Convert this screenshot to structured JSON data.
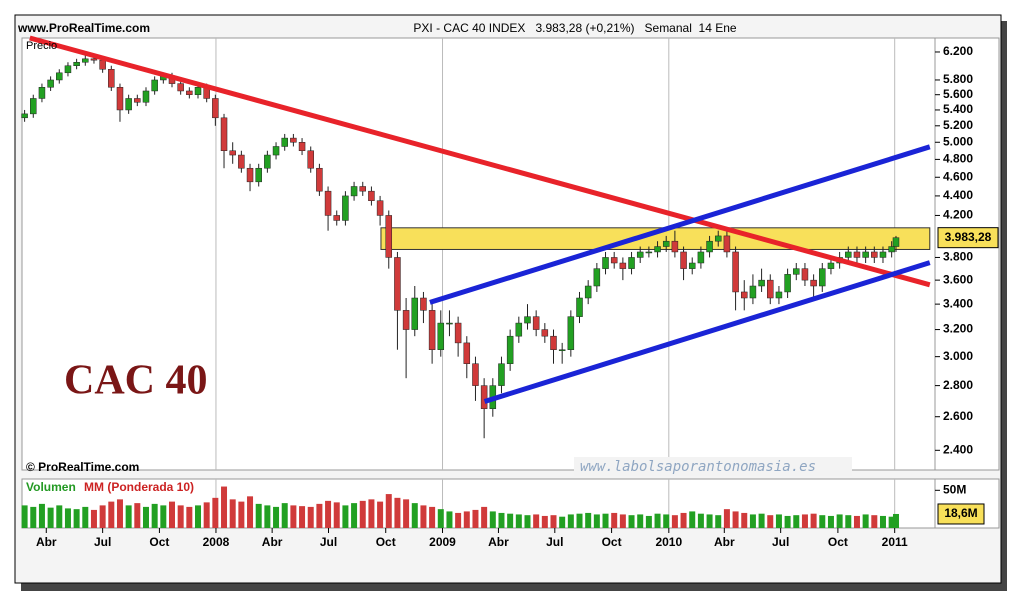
{
  "chart_data": {
    "type": "candlestick",
    "source": "www.ProRealTime.com",
    "subtitle": "PXI - CAC 40 INDEX   3.983,28 (+0,21%)   Semanal  14 Ene",
    "ylabel": "Precio",
    "watermark": "CAC 40",
    "copyright": "© ProRealTime.com",
    "website": "www.labolsaporantonomasia.es",
    "log": true,
    "xgrid": true,
    "colors": {
      "up": "#22a022",
      "down": "#d03a3a"
    },
    "x": [
      8,
      10,
      12,
      14,
      16,
      18,
      20,
      22,
      24,
      26,
      28,
      30,
      32,
      34,
      36,
      38,
      40,
      42,
      44,
      46,
      48,
      50,
      52,
      54,
      56,
      58,
      60,
      62,
      64,
      66,
      68,
      70,
      72,
      74,
      76,
      78,
      80,
      82,
      84,
      86,
      88,
      90,
      92,
      94,
      96,
      98,
      100,
      102,
      104,
      106,
      108,
      110,
      112,
      114,
      116,
      118,
      120,
      122,
      124,
      126,
      128,
      130,
      132,
      134,
      136,
      138,
      140,
      142,
      144,
      146,
      148,
      150,
      152,
      154,
      156,
      158,
      160,
      162,
      164,
      166,
      168,
      170,
      172,
      174,
      176,
      178,
      180,
      182,
      184,
      186,
      188,
      190,
      192,
      194,
      196,
      198,
      200,
      202,
      204,
      206,
      208,
      209
    ],
    "open": [
      5300,
      5350,
      5550,
      5700,
      5800,
      5900,
      6000,
      6050,
      6100,
      6080,
      5950,
      5700,
      5400,
      5550,
      5500,
      5650,
      5800,
      5850,
      5750,
      5650,
      5600,
      5700,
      5550,
      5300,
      4900,
      4850,
      4700,
      4550,
      4700,
      4850,
      4950,
      5050,
      5000,
      4900,
      4700,
      4450,
      4200,
      4150,
      4400,
      4500,
      4450,
      4350,
      4200,
      3800,
      3350,
      3200,
      3450,
      3350,
      3050,
      3250,
      3250,
      3100,
      2950,
      2800,
      2650,
      2800,
      2950,
      3150,
      3250,
      3300,
      3200,
      3150,
      3050,
      3050,
      3300,
      3450,
      3550,
      3700,
      3800,
      3750,
      3700,
      3800,
      3850,
      3850,
      3900,
      3950,
      3850,
      3700,
      3750,
      3850,
      3950,
      4000,
      3850,
      3500,
      3450,
      3550,
      3600,
      3450,
      3500,
      3650,
      3700,
      3600,
      3550,
      3700,
      3750,
      3800,
      3850,
      3800,
      3850,
      3800,
      3850,
      3900
    ],
    "high": [
      5400,
      5600,
      5750,
      5850,
      5950,
      6050,
      6100,
      6150,
      6150,
      6130,
      6000,
      5750,
      5600,
      5600,
      5700,
      5850,
      5900,
      5900,
      5800,
      5700,
      5750,
      5750,
      5600,
      5350,
      5000,
      4900,
      4750,
      4750,
      4900,
      5000,
      5100,
      5100,
      5050,
      4950,
      4750,
      4500,
      4250,
      4450,
      4550,
      4550,
      4500,
      4400,
      4250,
      3850,
      3450,
      3550,
      3500,
      3400,
      3350,
      3350,
      3300,
      3150,
      3000,
      2850,
      2850,
      3000,
      3200,
      3300,
      3400,
      3350,
      3250,
      3200,
      3100,
      3350,
      3500,
      3600,
      3750,
      3850,
      3850,
      3800,
      3850,
      3900,
      3900,
      3950,
      4000,
      4050,
      3900,
      3800,
      3900,
      4000,
      4050,
      4050,
      3900,
      3600,
      3650,
      3700,
      3650,
      3550,
      3700,
      3750,
      3750,
      3650,
      3750,
      3800,
      3850,
      3900,
      3900,
      3900,
      3900,
      3900,
      3950,
      4000
    ],
    "low": [
      5250,
      5300,
      5500,
      5650,
      5750,
      5850,
      5950,
      6000,
      6030,
      5900,
      5650,
      5250,
      5350,
      5450,
      5450,
      5600,
      5750,
      5700,
      5600,
      5550,
      5550,
      5500,
      5200,
      4700,
      4750,
      4650,
      4450,
      4500,
      4650,
      4800,
      4900,
      4950,
      4850,
      4650,
      4400,
      4050,
      4100,
      4100,
      4350,
      4400,
      4300,
      4100,
      3700,
      3050,
      2850,
      3150,
      3250,
      2950,
      3000,
      3150,
      3000,
      2850,
      2700,
      2470,
      2600,
      2750,
      2900,
      3100,
      3200,
      3150,
      3100,
      2950,
      2950,
      3000,
      3250,
      3400,
      3500,
      3650,
      3700,
      3600,
      3650,
      3750,
      3800,
      3800,
      3850,
      3800,
      3600,
      3650,
      3700,
      3800,
      3900,
      3800,
      3350,
      3350,
      3400,
      3500,
      3400,
      3400,
      3450,
      3600,
      3550,
      3450,
      3500,
      3650,
      3700,
      3750,
      3750,
      3750,
      3750,
      3750,
      3800,
      3850
    ],
    "close": [
      5350,
      5550,
      5700,
      5800,
      5900,
      6000,
      6050,
      6100,
      6080,
      5950,
      5700,
      5400,
      5550,
      5500,
      5650,
      5800,
      5850,
      5750,
      5650,
      5600,
      5700,
      5550,
      5300,
      4900,
      4850,
      4700,
      4550,
      4700,
      4850,
      4950,
      5050,
      5000,
      4900,
      4700,
      4450,
      4200,
      4150,
      4400,
      4500,
      4450,
      4350,
      4200,
      3800,
      3350,
      3200,
      3450,
      3350,
      3050,
      3250,
      3250,
      3100,
      2950,
      2800,
      2650,
      2800,
      2950,
      3150,
      3250,
      3300,
      3200,
      3150,
      3050,
      3050,
      3300,
      3450,
      3550,
      3700,
      3800,
      3750,
      3700,
      3800,
      3850,
      3850,
      3900,
      3950,
      3850,
      3700,
      3750,
      3850,
      3950,
      4000,
      3850,
      3500,
      3450,
      3550,
      3600,
      3450,
      3500,
      3650,
      3700,
      3600,
      3550,
      3700,
      3750,
      3800,
      3850,
      3800,
      3850,
      3800,
      3850,
      3900,
      3983.28
    ],
    "last_value_label": "3.983,28",
    "xlim": [
      7.4,
      218
    ],
    "xticks": [
      {
        "value": 13,
        "label": "Abr"
      },
      {
        "value": 26,
        "label": "Jul"
      },
      {
        "value": 39.1,
        "label": "Oct"
      },
      {
        "value": 52.14,
        "label": "2008"
      },
      {
        "value": 65.1,
        "label": "Abr"
      },
      {
        "value": 78.1,
        "label": "Jul"
      },
      {
        "value": 91.3,
        "label": "Oct"
      },
      {
        "value": 104.4,
        "label": "2009"
      },
      {
        "value": 117.3,
        "label": "Abr"
      },
      {
        "value": 130.3,
        "label": "Jul"
      },
      {
        "value": 143.4,
        "label": "Oct"
      },
      {
        "value": 156.6,
        "label": "2010"
      },
      {
        "value": 169.4,
        "label": "Abr"
      },
      {
        "value": 182.4,
        "label": "Jul"
      },
      {
        "value": 195.6,
        "label": "Oct"
      },
      {
        "value": 208.7,
        "label": "2011"
      }
    ],
    "ylim": [
      2290,
      6410
    ],
    "yticks": [
      {
        "value": 2400,
        "label": "2.400"
      },
      {
        "value": 2600,
        "label": "2.600"
      },
      {
        "value": 2800,
        "label": "2.800"
      },
      {
        "value": 3000,
        "label": "3.000"
      },
      {
        "value": 3200,
        "label": "3.200"
      },
      {
        "value": 3400,
        "label": "3.400"
      },
      {
        "value": 3600,
        "label": "3.600"
      },
      {
        "value": 3800,
        "label": "3.800"
      },
      {
        "value": 4200,
        "label": "4.200"
      },
      {
        "value": 4400,
        "label": "4.400"
      },
      {
        "value": 4600,
        "label": "4.600"
      },
      {
        "value": 4800,
        "label": "4.800"
      },
      {
        "value": 5000,
        "label": "5.000"
      },
      {
        "value": 5200,
        "label": "5.200"
      },
      {
        "value": 5400,
        "label": "5.400"
      },
      {
        "value": 5600,
        "label": "5.600"
      },
      {
        "value": 5800,
        "label": "5.800"
      },
      {
        "value": 6200,
        "label": "6.200"
      }
    ],
    "trend_lines": [
      {
        "color": "#e8232a",
        "x": [
          9.2,
          216.8
        ],
        "y": [
          6410,
          3560
        ]
      },
      {
        "color": "#1a24d6",
        "x": [
          101.5,
          216.8
        ],
        "y": [
          3414,
          4946
        ]
      },
      {
        "color": "#1a24d6",
        "x": [
          114.1,
          216.8
        ],
        "y": [
          2696,
          3753
        ]
      }
    ],
    "zone": {
      "color": "#f8e05a",
      "x": [
        90.2,
        216.8
      ],
      "y": [
        3873,
        4078
      ]
    },
    "volume": {
      "name": "Volumen",
      "ma_name": "MM (Ponderada 10)",
      "values": [
        30,
        28,
        32,
        27,
        30,
        26,
        25,
        28,
        24,
        30,
        35,
        38,
        30,
        33,
        28,
        32,
        30,
        35,
        30,
        28,
        30,
        34,
        40,
        55,
        38,
        35,
        42,
        32,
        30,
        28,
        33,
        30,
        29,
        28,
        32,
        36,
        34,
        30,
        33,
        36,
        38,
        35,
        45,
        40,
        38,
        33,
        30,
        28,
        25,
        22,
        20,
        22,
        24,
        28,
        22,
        20,
        19,
        18,
        17,
        18,
        16,
        17,
        15,
        18,
        19,
        20,
        18,
        19,
        20,
        18,
        17,
        18,
        16,
        19,
        18,
        17,
        20,
        22,
        19,
        18,
        17,
        25,
        22,
        20,
        18,
        19,
        17,
        18,
        16,
        17,
        18,
        19,
        17,
        16,
        18,
        17,
        16,
        18,
        17,
        16,
        15,
        18.6
      ],
      "last_value_label": "18,6M",
      "ylim": [
        0,
        65
      ],
      "yticks": [
        {
          "value": 50,
          "label": "50M"
        }
      ]
    }
  }
}
